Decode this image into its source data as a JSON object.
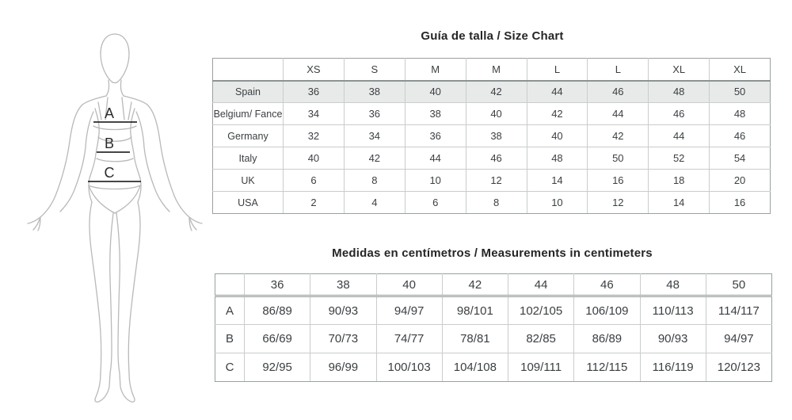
{
  "figure": {
    "labels": [
      "A",
      "B",
      "C"
    ]
  },
  "size_chart": {
    "title": "Guía de talla / Size Chart",
    "columns": [
      "",
      "XS",
      "S",
      "M",
      "M",
      "L",
      "L",
      "XL",
      "XL"
    ],
    "highlight_row_color": "#e8eaea",
    "rows": [
      {
        "label": "Spain",
        "highlight": true,
        "values": [
          "36",
          "38",
          "40",
          "42",
          "44",
          "46",
          "48",
          "50"
        ]
      },
      {
        "label": "Belgium/ Fance",
        "values": [
          "34",
          "36",
          "38",
          "40",
          "42",
          "44",
          "46",
          "48"
        ]
      },
      {
        "label": "Germany",
        "values": [
          "32",
          "34",
          "36",
          "38",
          "40",
          "42",
          "44",
          "46"
        ]
      },
      {
        "label": "Italy",
        "values": [
          "40",
          "42",
          "44",
          "46",
          "48",
          "50",
          "52",
          "54"
        ]
      },
      {
        "label": "UK",
        "values": [
          "6",
          "8",
          "10",
          "12",
          "14",
          "16",
          "18",
          "20"
        ]
      },
      {
        "label": "USA",
        "values": [
          "2",
          "4",
          "6",
          "8",
          "10",
          "12",
          "14",
          "16"
        ]
      }
    ]
  },
  "measurements": {
    "title": "Medidas en centímetros / Measurements in centimeters",
    "columns": [
      "",
      "36",
      "38",
      "40",
      "42",
      "44",
      "46",
      "48",
      "50"
    ],
    "rows": [
      {
        "label": "A",
        "values": [
          "86/89",
          "90/93",
          "94/97",
          "98/101",
          "102/105",
          "106/109",
          "110/113",
          "114/117"
        ]
      },
      {
        "label": "B",
        "values": [
          "66/69",
          "70/73",
          "74/77",
          "78/81",
          "82/85",
          "86/89",
          "90/93",
          "94/97"
        ]
      },
      {
        "label": "C",
        "values": [
          "92/95",
          "96/99",
          "100/103",
          "104/108",
          "109/111",
          "112/115",
          "116/119",
          "120/123"
        ]
      }
    ]
  }
}
